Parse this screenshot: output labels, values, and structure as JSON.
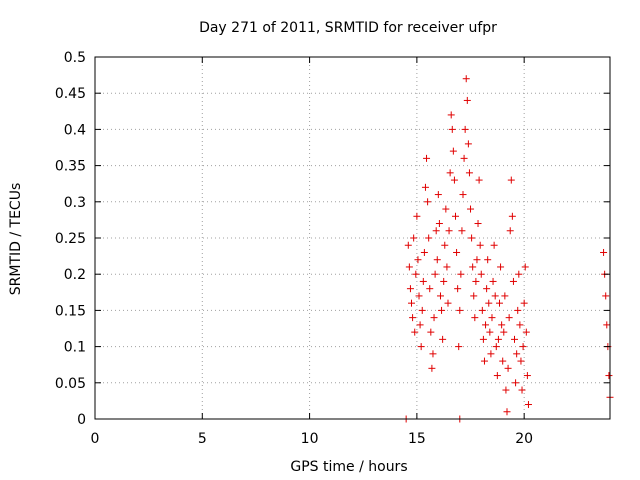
{
  "chart_data": {
    "type": "scatter",
    "title": "Day 271 of 2011, SRMTID for receiver ufpr",
    "xlabel": "GPS time / hours",
    "ylabel": "SRMTID / TECUs",
    "xlim": [
      0,
      24
    ],
    "ylim": [
      0,
      0.5
    ],
    "x_ticks": [
      "0",
      "5",
      "10",
      "15",
      "20"
    ],
    "x_tick_values": [
      0,
      5,
      10,
      15,
      20
    ],
    "y_ticks": [
      "0",
      "0.05",
      "0.1",
      "0.15",
      "0.2",
      "0.25",
      "0.3",
      "0.35",
      "0.4",
      "0.45",
      "0.5"
    ],
    "y_tick_values": [
      0,
      0.05,
      0.1,
      0.15,
      0.2,
      0.25,
      0.3,
      0.35,
      0.4,
      0.45,
      0.5
    ],
    "grid": true,
    "marker": "+",
    "color": "#e00000",
    "series": [
      {
        "name": "SRMTID",
        "points": [
          [
            14.5,
            0.0
          ],
          [
            17.0,
            0.0
          ],
          [
            14.6,
            0.24
          ],
          [
            14.65,
            0.21
          ],
          [
            14.7,
            0.18
          ],
          [
            14.75,
            0.16
          ],
          [
            14.8,
            0.14
          ],
          [
            14.85,
            0.25
          ],
          [
            14.9,
            0.12
          ],
          [
            14.95,
            0.2
          ],
          [
            15.0,
            0.28
          ],
          [
            15.05,
            0.22
          ],
          [
            15.1,
            0.17
          ],
          [
            15.15,
            0.13
          ],
          [
            15.2,
            0.1
          ],
          [
            15.25,
            0.15
          ],
          [
            15.3,
            0.19
          ],
          [
            15.35,
            0.23
          ],
          [
            15.4,
            0.32
          ],
          [
            15.45,
            0.36
          ],
          [
            15.5,
            0.3
          ],
          [
            15.55,
            0.25
          ],
          [
            15.6,
            0.18
          ],
          [
            15.65,
            0.12
          ],
          [
            15.7,
            0.07
          ],
          [
            15.75,
            0.09
          ],
          [
            15.8,
            0.14
          ],
          [
            15.85,
            0.2
          ],
          [
            15.9,
            0.26
          ],
          [
            15.95,
            0.22
          ],
          [
            16.0,
            0.31
          ],
          [
            16.05,
            0.27
          ],
          [
            16.1,
            0.17
          ],
          [
            16.15,
            0.15
          ],
          [
            16.2,
            0.11
          ],
          [
            16.25,
            0.19
          ],
          [
            16.3,
            0.24
          ],
          [
            16.35,
            0.29
          ],
          [
            16.4,
            0.21
          ],
          [
            16.45,
            0.16
          ],
          [
            16.5,
            0.26
          ],
          [
            16.55,
            0.34
          ],
          [
            16.6,
            0.42
          ],
          [
            16.65,
            0.4
          ],
          [
            16.7,
            0.37
          ],
          [
            16.75,
            0.33
          ],
          [
            16.8,
            0.28
          ],
          [
            16.85,
            0.23
          ],
          [
            16.9,
            0.18
          ],
          [
            16.95,
            0.1
          ],
          [
            17.0,
            0.15
          ],
          [
            17.05,
            0.2
          ],
          [
            17.1,
            0.26
          ],
          [
            17.15,
            0.31
          ],
          [
            17.2,
            0.36
          ],
          [
            17.25,
            0.4
          ],
          [
            17.3,
            0.47
          ],
          [
            17.35,
            0.44
          ],
          [
            17.4,
            0.38
          ],
          [
            17.45,
            0.34
          ],
          [
            17.5,
            0.29
          ],
          [
            17.55,
            0.25
          ],
          [
            17.6,
            0.21
          ],
          [
            17.65,
            0.17
          ],
          [
            17.7,
            0.14
          ],
          [
            17.75,
            0.19
          ],
          [
            17.8,
            0.22
          ],
          [
            17.85,
            0.27
          ],
          [
            17.9,
            0.33
          ],
          [
            17.95,
            0.24
          ],
          [
            18.0,
            0.2
          ],
          [
            18.05,
            0.15
          ],
          [
            18.1,
            0.11
          ],
          [
            18.15,
            0.08
          ],
          [
            18.2,
            0.13
          ],
          [
            18.25,
            0.18
          ],
          [
            18.3,
            0.22
          ],
          [
            18.35,
            0.16
          ],
          [
            18.4,
            0.12
          ],
          [
            18.45,
            0.09
          ],
          [
            18.5,
            0.14
          ],
          [
            18.55,
            0.19
          ],
          [
            18.6,
            0.24
          ],
          [
            18.65,
            0.17
          ],
          [
            18.7,
            0.1
          ],
          [
            18.75,
            0.06
          ],
          [
            18.8,
            0.11
          ],
          [
            18.85,
            0.16
          ],
          [
            18.9,
            0.21
          ],
          [
            18.95,
            0.13
          ],
          [
            19.0,
            0.08
          ],
          [
            19.05,
            0.12
          ],
          [
            19.1,
            0.17
          ],
          [
            19.15,
            0.04
          ],
          [
            19.2,
            0.01
          ],
          [
            19.25,
            0.07
          ],
          [
            19.3,
            0.14
          ],
          [
            19.35,
            0.26
          ],
          [
            19.4,
            0.33
          ],
          [
            19.45,
            0.28
          ],
          [
            19.5,
            0.19
          ],
          [
            19.55,
            0.11
          ],
          [
            19.6,
            0.05
          ],
          [
            19.65,
            0.09
          ],
          [
            19.7,
            0.15
          ],
          [
            19.75,
            0.2
          ],
          [
            19.8,
            0.13
          ],
          [
            19.85,
            0.08
          ],
          [
            19.9,
            0.04
          ],
          [
            19.95,
            0.1
          ],
          [
            20.0,
            0.16
          ],
          [
            20.05,
            0.21
          ],
          [
            20.1,
            0.12
          ],
          [
            20.15,
            0.06
          ],
          [
            20.2,
            0.02
          ],
          [
            23.7,
            0.23
          ],
          [
            23.75,
            0.2
          ],
          [
            23.8,
            0.17
          ],
          [
            23.85,
            0.13
          ],
          [
            23.9,
            0.1
          ],
          [
            23.95,
            0.06
          ],
          [
            24.0,
            0.03
          ]
        ]
      }
    ]
  }
}
